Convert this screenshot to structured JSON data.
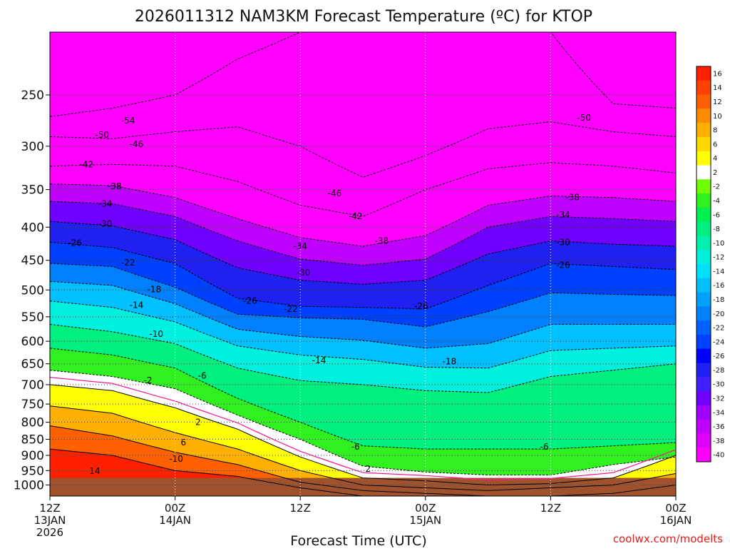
{
  "chart_data": {
    "type": "heatmap",
    "title": "2026011312 NAM3KM Forecast Temperature (ºC) for KTOP",
    "xlabel": "Forecast Time (UTC)",
    "ylabel": "",
    "y_scale": "log-pressure",
    "y_range_hpa": [
      200,
      1040
    ],
    "y_ticks": [
      "250",
      "300",
      "350",
      "400",
      "450",
      "500",
      "550",
      "600",
      "650",
      "700",
      "750",
      "800",
      "850",
      "900",
      "950",
      "1000"
    ],
    "x_range_hours": [
      0,
      60
    ],
    "x_ticks": [
      {
        "hour": 0,
        "line1": "12Z",
        "line2": "13JAN",
        "line3": "2026"
      },
      {
        "hour": 12,
        "line1": "00Z",
        "line2": "14JAN",
        "line3": ""
      },
      {
        "hour": 24,
        "line1": "12Z",
        "line2": "",
        "line3": ""
      },
      {
        "hour": 36,
        "line1": "00Z",
        "line2": "15JAN",
        "line3": ""
      },
      {
        "hour": 48,
        "line1": "12Z",
        "line2": "",
        "line3": ""
      },
      {
        "hour": 60,
        "line1": "00Z",
        "line2": "16JAN",
        "line3": ""
      }
    ],
    "grid": true,
    "surface_color": "#a0522d",
    "levels": [
      -40,
      -38,
      -36,
      -34,
      -32,
      -30,
      -28,
      -26,
      -24,
      -22,
      -20,
      -18,
      -16,
      -14,
      -12,
      -10,
      -8,
      -6,
      -4,
      -2,
      2,
      4,
      6,
      8,
      10,
      12,
      14,
      16
    ],
    "level_colors": [
      "#ff00ff",
      "#e000ff",
      "#c000ff",
      "#a000ff",
      "#7000ff",
      "#4020ff",
      "#2020f0",
      "#0000ff",
      "#0040ff",
      "#0060ff",
      "#0080ff",
      "#00a0ff",
      "#00c0ff",
      "#00e0ff",
      "#00f0e0",
      "#00f0b0",
      "#00f080",
      "#00f050",
      "#30f020",
      "#70ff00",
      "#ffffff",
      "#ffff00",
      "#ffd800",
      "#ffb000",
      "#ff8c00",
      "#ff6000",
      "#ff4000",
      "#ff2000"
    ],
    "colorbar_labels": [
      "16",
      "14",
      "12",
      "10",
      "8",
      "6",
      "4",
      "2",
      "-2",
      "-4",
      "-6",
      "-8",
      "-10",
      "-12",
      "-14",
      "-16",
      "-18",
      "-20",
      "-22",
      "-24",
      "-26",
      "-28",
      "-30",
      "-32",
      "-34",
      "-36",
      "-38",
      "-40"
    ],
    "isotherm_profiles": {
      "-50": [
        [
          0,
          270
        ],
        [
          6,
          262
        ],
        [
          12,
          250
        ],
        [
          18,
          220
        ],
        [
          24,
          200
        ],
        [
          30,
          200
        ],
        [
          36,
          200
        ],
        [
          42,
          200
        ],
        [
          48,
          200
        ],
        [
          54,
          258
        ],
        [
          60,
          262
        ]
      ],
      "-46": [
        [
          0,
          290
        ],
        [
          6,
          292
        ],
        [
          12,
          285
        ],
        [
          18,
          280
        ],
        [
          24,
          300
        ],
        [
          30,
          335
        ],
        [
          36,
          310
        ],
        [
          42,
          282
        ],
        [
          48,
          275
        ],
        [
          54,
          285
        ],
        [
          60,
          290
        ]
      ],
      "-42": [
        [
          0,
          322
        ],
        [
          6,
          320
        ],
        [
          12,
          322
        ],
        [
          18,
          340
        ],
        [
          24,
          370
        ],
        [
          30,
          385
        ],
        [
          36,
          350
        ],
        [
          42,
          325
        ],
        [
          48,
          318
        ],
        [
          54,
          322
        ],
        [
          60,
          330
        ]
      ],
      "-38": [
        [
          0,
          343
        ],
        [
          6,
          345
        ],
        [
          12,
          360
        ],
        [
          18,
          388
        ],
        [
          24,
          415
        ],
        [
          30,
          428
        ],
        [
          36,
          412
        ],
        [
          42,
          370
        ],
        [
          48,
          358
        ],
        [
          54,
          360
        ],
        [
          60,
          365
        ]
      ],
      "-34": [
        [
          0,
          365
        ],
        [
          6,
          368
        ],
        [
          12,
          385
        ],
        [
          18,
          420
        ],
        [
          24,
          448
        ],
        [
          30,
          458
        ],
        [
          36,
          448
        ],
        [
          42,
          400
        ],
        [
          48,
          385
        ],
        [
          54,
          388
        ],
        [
          60,
          392
        ]
      ],
      "-30": [
        [
          0,
          392
        ],
        [
          6,
          398
        ],
        [
          12,
          418
        ],
        [
          18,
          462
        ],
        [
          24,
          483
        ],
        [
          30,
          490
        ],
        [
          36,
          483
        ],
        [
          42,
          440
        ],
        [
          48,
          420
        ],
        [
          54,
          425
        ],
        [
          60,
          428
        ]
      ],
      "-26": [
        [
          0,
          422
        ],
        [
          6,
          430
        ],
        [
          12,
          455
        ],
        [
          18,
          515
        ],
        [
          24,
          530
        ],
        [
          30,
          532
        ],
        [
          36,
          535
        ],
        [
          42,
          492
        ],
        [
          48,
          455
        ],
        [
          54,
          460
        ],
        [
          60,
          465
        ]
      ],
      "-22": [
        [
          0,
          455
        ],
        [
          6,
          460
        ],
        [
          12,
          495
        ],
        [
          18,
          545
        ],
        [
          24,
          552
        ],
        [
          30,
          555
        ],
        [
          36,
          570
        ],
        [
          42,
          540
        ],
        [
          48,
          505
        ],
        [
          54,
          508
        ],
        [
          60,
          510
        ]
      ],
      "-18": [
        [
          0,
          485
        ],
        [
          6,
          492
        ],
        [
          12,
          525
        ],
        [
          18,
          575
        ],
        [
          24,
          590
        ],
        [
          30,
          598
        ],
        [
          36,
          615
        ],
        [
          42,
          605
        ],
        [
          48,
          565
        ],
        [
          54,
          565
        ],
        [
          60,
          565
        ]
      ],
      "-14": [
        [
          0,
          520
        ],
        [
          6,
          532
        ],
        [
          12,
          560
        ],
        [
          18,
          610
        ],
        [
          24,
          630
        ],
        [
          30,
          640
        ],
        [
          36,
          658
        ],
        [
          42,
          660
        ],
        [
          48,
          620
        ],
        [
          54,
          615
        ],
        [
          60,
          610
        ]
      ],
      "-10": [
        [
          0,
          565
        ],
        [
          6,
          580
        ],
        [
          12,
          605
        ],
        [
          18,
          660
        ],
        [
          24,
          690
        ],
        [
          30,
          700
        ],
        [
          36,
          715
        ],
        [
          42,
          720
        ],
        [
          48,
          680
        ],
        [
          54,
          665
        ],
        [
          60,
          650
        ]
      ],
      "-6": [
        [
          0,
          615
        ],
        [
          6,
          630
        ],
        [
          12,
          660
        ],
        [
          18,
          735
        ],
        [
          24,
          800
        ],
        [
          30,
          870
        ],
        [
          36,
          880
        ],
        [
          42,
          880
        ],
        [
          48,
          880
        ],
        [
          54,
          870
        ],
        [
          60,
          860
        ]
      ],
      "-2": [
        [
          0,
          665
        ],
        [
          6,
          680
        ],
        [
          12,
          710
        ],
        [
          18,
          780
        ],
        [
          24,
          850
        ],
        [
          30,
          935
        ],
        [
          36,
          955
        ],
        [
          42,
          965
        ],
        [
          48,
          965
        ],
        [
          54,
          930
        ],
        [
          60,
          905
        ]
      ],
      "2": [
        [
          0,
          700
        ],
        [
          6,
          715
        ],
        [
          12,
          760
        ],
        [
          18,
          820
        ],
        [
          24,
          905
        ],
        [
          30,
          975
        ],
        [
          36,
          985
        ],
        [
          42,
          1000
        ],
        [
          48,
          995
        ],
        [
          54,
          975
        ],
        [
          60,
          900
        ]
      ],
      "6": [
        [
          0,
          755
        ],
        [
          6,
          775
        ],
        [
          12,
          830
        ],
        [
          18,
          880
        ],
        [
          24,
          950
        ],
        [
          30,
          1000
        ],
        [
          36,
          1010
        ],
        [
          42,
          1020
        ],
        [
          48,
          1010
        ],
        [
          54,
          1000
        ],
        [
          60,
          960
        ]
      ],
      "10": [
        [
          0,
          810
        ],
        [
          6,
          840
        ],
        [
          12,
          890
        ],
        [
          18,
          930
        ],
        [
          24,
          990
        ],
        [
          30,
          1020
        ],
        [
          36,
          1030
        ],
        [
          42,
          1040
        ],
        [
          48,
          1040
        ],
        [
          54,
          1030
        ],
        [
          60,
          1000
        ]
      ],
      "14": [
        [
          0,
          880
        ],
        [
          6,
          900
        ],
        [
          12,
          950
        ],
        [
          18,
          970
        ],
        [
          24,
          1010
        ],
        [
          30,
          1040
        ],
        [
          36,
          1040
        ],
        [
          42,
          1040
        ],
        [
          48,
          1040
        ],
        [
          54,
          1040
        ],
        [
          60,
          1040
        ]
      ]
    },
    "contour_labels": [
      {
        "text": "-54",
        "hour": 7.5,
        "hpa": 274
      },
      {
        "text": "-50",
        "hour": 5,
        "hpa": 288
      },
      {
        "text": "-46",
        "hour": 8.3,
        "hpa": 298
      },
      {
        "text": "-42",
        "hour": 3.5,
        "hpa": 320
      },
      {
        "text": "-38",
        "hour": 6.2,
        "hpa": 346
      },
      {
        "text": "-34",
        "hour": 5.3,
        "hpa": 368
      },
      {
        "text": "-30",
        "hour": 5.3,
        "hpa": 395
      },
      {
        "text": "-26",
        "hour": 2.4,
        "hpa": 423
      },
      {
        "text": "-22",
        "hour": 7.5,
        "hpa": 454
      },
      {
        "text": "-18",
        "hour": 10,
        "hpa": 499
      },
      {
        "text": "-14",
        "hour": 8.3,
        "hpa": 528
      },
      {
        "text": "-10",
        "hour": 10.2,
        "hpa": 585
      },
      {
        "text": "-6",
        "hour": 14.6,
        "hpa": 678
      },
      {
        "text": "-2",
        "hour": 9.4,
        "hpa": 690
      },
      {
        "text": "2",
        "hour": 14.2,
        "hpa": 800
      },
      {
        "text": "6",
        "hour": 12.8,
        "hpa": 860
      },
      {
        "text": "-10",
        "hour": 12.1,
        "hpa": 912
      },
      {
        "text": "14",
        "hour": 4.3,
        "hpa": 952
      },
      {
        "text": "-46",
        "hour": 27.3,
        "hpa": 355
      },
      {
        "text": "-42",
        "hour": 29.3,
        "hpa": 385
      },
      {
        "text": "-38",
        "hour": 31.8,
        "hpa": 420
      },
      {
        "text": "-34",
        "hour": 24,
        "hpa": 428
      },
      {
        "text": "-30",
        "hour": 24.3,
        "hpa": 470
      },
      {
        "text": "-26",
        "hour": 19.2,
        "hpa": 520
      },
      {
        "text": "-22",
        "hour": 23.1,
        "hpa": 535
      },
      {
        "text": "-14",
        "hour": 25.8,
        "hpa": 642
      },
      {
        "text": "-6",
        "hour": 29.3,
        "hpa": 873
      },
      {
        "text": "2",
        "hour": 30.5,
        "hpa": 945
      },
      {
        "text": "-26",
        "hour": 35.6,
        "hpa": 530
      },
      {
        "text": "-18",
        "hour": 38.3,
        "hpa": 645
      },
      {
        "text": "-6",
        "hour": 47.4,
        "hpa": 873
      },
      {
        "text": "-50",
        "hour": 51.2,
        "hpa": 271
      },
      {
        "text": "-38",
        "hour": 50.1,
        "hpa": 360
      },
      {
        "text": "-34",
        "hour": 49.2,
        "hpa": 383
      },
      {
        "text": "-30",
        "hour": 49.2,
        "hpa": 422
      },
      {
        "text": "-26",
        "hour": 49.2,
        "hpa": 458
      }
    ]
  },
  "watermark": "coolwx.com/modelts"
}
